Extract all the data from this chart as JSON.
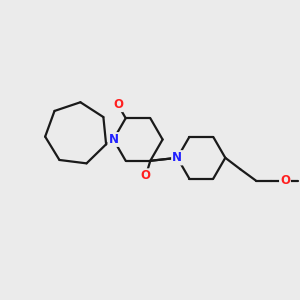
{
  "background_color": "#ebebeb",
  "bond_color": "#1a1a1a",
  "N_color": "#2020ff",
  "O_color": "#ff2020",
  "bond_width": 1.6,
  "font_size_atom": 8.5,
  "xlim": [
    0,
    10
  ],
  "ylim": [
    0,
    10
  ],
  "figsize": [
    3.0,
    3.0
  ],
  "dpi": 100
}
